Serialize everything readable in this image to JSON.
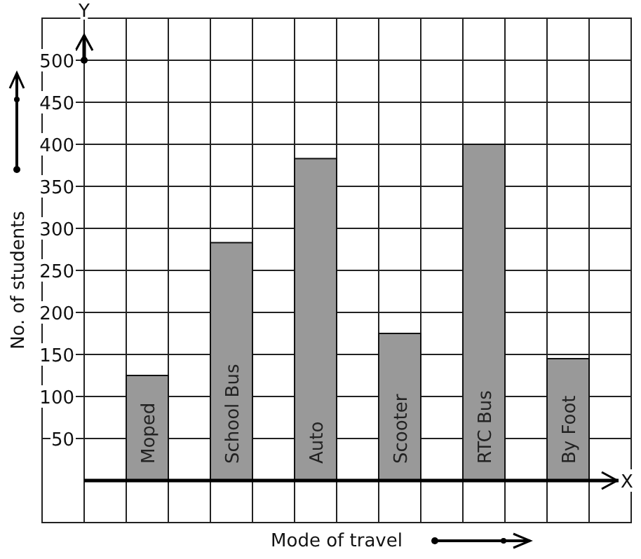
{
  "chart_data": {
    "type": "bar",
    "categories": [
      "Moped",
      "School Bus",
      "Auto",
      "Scooter",
      "RTC Bus",
      "By Foot"
    ],
    "values": [
      125,
      283,
      383,
      175,
      400,
      145
    ],
    "color": "#999999",
    "xlabel": "Mode of travel",
    "ylabel": "No. of students",
    "annotations": [
      "X",
      "Y"
    ],
    "ylim": [
      -50,
      550
    ],
    "yticks": [
      50,
      100,
      150,
      200,
      250,
      300,
      350,
      400,
      450,
      500
    ],
    "grid": true
  }
}
